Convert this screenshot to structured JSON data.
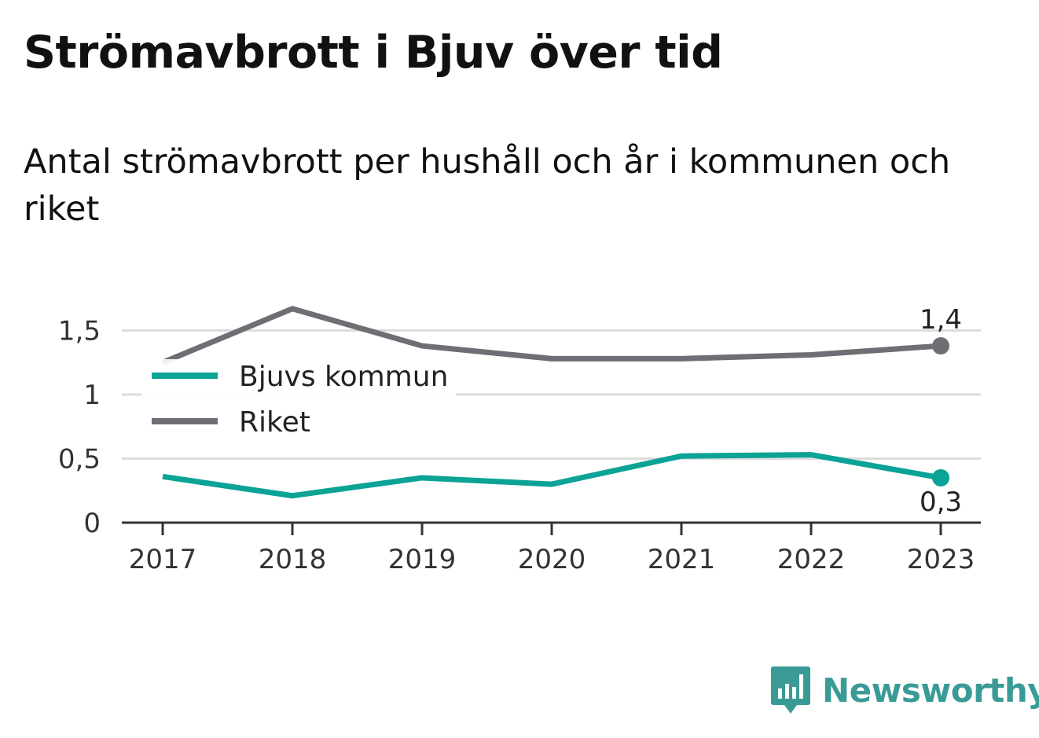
{
  "header": {
    "title": "Strömavbrott i Bjuv över tid",
    "subtitle": "Antal strömavbrott per hushåll och år i kommunen och riket"
  },
  "brand": {
    "name": "Newsworthy",
    "icon": "newsworthy-logo-icon",
    "color": "#3a9b96"
  },
  "chart_data": {
    "type": "line",
    "x": [
      "2017",
      "2018",
      "2019",
      "2020",
      "2021",
      "2022",
      "2023"
    ],
    "ylim": [
      0,
      1.5
    ],
    "yticks": [
      0,
      0.5,
      1,
      1.5
    ],
    "ytick_labels": [
      "0",
      "0,5",
      "1",
      "1,5"
    ],
    "grid": true,
    "legend_position": "top-left",
    "series": [
      {
        "name": "Bjuvs kommun",
        "color": "#0aa396",
        "values": [
          0.36,
          0.21,
          0.35,
          0.3,
          0.52,
          0.53,
          0.35
        ],
        "end_label": "0,3",
        "end_label_position": "below"
      },
      {
        "name": "Riket",
        "color": "#6f6e75",
        "values": [
          1.25,
          1.67,
          1.38,
          1.28,
          1.28,
          1.31,
          1.38
        ],
        "end_label": "1,4",
        "end_label_position": "above"
      }
    ]
  }
}
